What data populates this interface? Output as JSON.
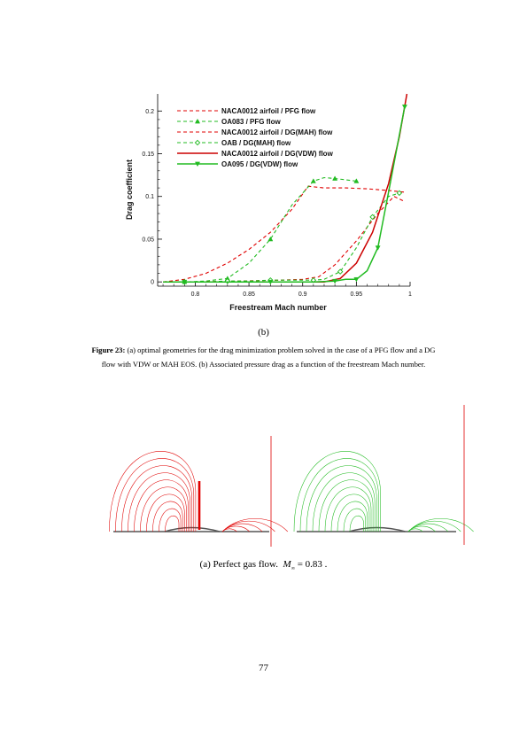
{
  "chart_data": {
    "type": "line",
    "xlabel": "Freestream Mach number",
    "ylabel": "Drag coefficient",
    "xlim": [
      0.765,
      1.0
    ],
    "ylim": [
      -0.005,
      0.22
    ],
    "xticks": [
      0.8,
      0.85,
      0.9,
      0.95,
      1
    ],
    "xtick_labels": [
      "0.8",
      "0.85",
      "0.9",
      "0.95",
      "1"
    ],
    "yticks": [
      0,
      0.05,
      0.1,
      0.15,
      0.2
    ],
    "ytick_labels": [
      "0",
      "0.05",
      "0.1",
      "0.15",
      "0.2"
    ],
    "legend_position": "top-left",
    "grid": false,
    "series": [
      {
        "name": "NACA0012 airfoil / PFG flow",
        "color": "#e00000",
        "style": "dashed",
        "marker": "none",
        "x": [
          0.77,
          0.79,
          0.81,
          0.83,
          0.85,
          0.87,
          0.89,
          0.905,
          0.92,
          0.94,
          0.96,
          0.98,
          0.995
        ],
        "y": [
          0.0,
          0.003,
          0.01,
          0.022,
          0.038,
          0.058,
          0.085,
          0.112,
          0.11,
          0.11,
          0.109,
          0.107,
          0.105
        ]
      },
      {
        "name": "OA083 / PFG flow",
        "color": "#22bb22",
        "style": "dashed",
        "marker": "triangle",
        "x": [
          0.77,
          0.79,
          0.81,
          0.83,
          0.85,
          0.87,
          0.89,
          0.91,
          0.92,
          0.93,
          0.95
        ],
        "y": [
          0.0,
          0.0,
          0.001,
          0.004,
          0.022,
          0.05,
          0.09,
          0.118,
          0.122,
          0.121,
          0.118
        ]
      },
      {
        "name": "NACA0012 airfoil / DG(MAH) flow",
        "color": "#e00000",
        "style": "dashed",
        "marker": "none",
        "x": [
          0.77,
          0.8,
          0.84,
          0.88,
          0.9,
          0.915,
          0.93,
          0.95,
          0.97,
          0.985,
          0.995
        ],
        "y": [
          0.0,
          0.0,
          0.001,
          0.002,
          0.003,
          0.006,
          0.02,
          0.048,
          0.08,
          0.1,
          0.094
        ]
      },
      {
        "name": "OAB / DG(MAH) flow",
        "color": "#22bb22",
        "style": "dashed",
        "marker": "diamond",
        "x": [
          0.77,
          0.79,
          0.81,
          0.83,
          0.85,
          0.87,
          0.89,
          0.91,
          0.92,
          0.935,
          0.95,
          0.965,
          0.98,
          0.99
        ],
        "y": [
          0.0,
          0.0,
          0.0,
          0.001,
          0.001,
          0.002,
          0.002,
          0.002,
          0.003,
          0.012,
          0.04,
          0.076,
          0.1,
          0.104
        ]
      },
      {
        "name": "NACA0012 airfoil / DG(VDW) flow",
        "color": "#cc0000",
        "style": "solid",
        "marker": "none",
        "x": [
          0.77,
          0.8,
          0.85,
          0.9,
          0.92,
          0.935,
          0.95,
          0.965,
          0.98,
          0.99,
          0.997
        ],
        "y": [
          0.0,
          0.0,
          0.0,
          0.0,
          0.0,
          0.004,
          0.022,
          0.058,
          0.115,
          0.17,
          0.22
        ]
      },
      {
        "name": "OA095 / DG(VDW) flow",
        "color": "#22bb22",
        "style": "solid",
        "marker": "triangle-down",
        "x": [
          0.77,
          0.79,
          0.83,
          0.87,
          0.91,
          0.93,
          0.94,
          0.95,
          0.96,
          0.97,
          0.98,
          0.995
        ],
        "y": [
          0.0,
          0.0,
          0.0,
          0.0,
          0.0,
          0.001,
          0.003,
          0.003,
          0.013,
          0.04,
          0.105,
          0.205
        ]
      }
    ]
  },
  "subcaption_b": "(b)",
  "caption": {
    "label": "Figure 23:",
    "text": " (a) optimal geometries for the drag minimization problem solved in the case of a PFG flow and a DG flow with VDW or MAH EOS. (b) Associated pressure drag as a function of the freestream Mach number."
  },
  "contour_caption": {
    "prefix": "(a) Perfect gas flow.",
    "symbol": "M",
    "subscript": "∞",
    "equation": " = 0.83 ."
  },
  "page_number": "77",
  "colors": {
    "red": "#e00000",
    "green": "#22bb22",
    "grey_surface": "#555555"
  }
}
